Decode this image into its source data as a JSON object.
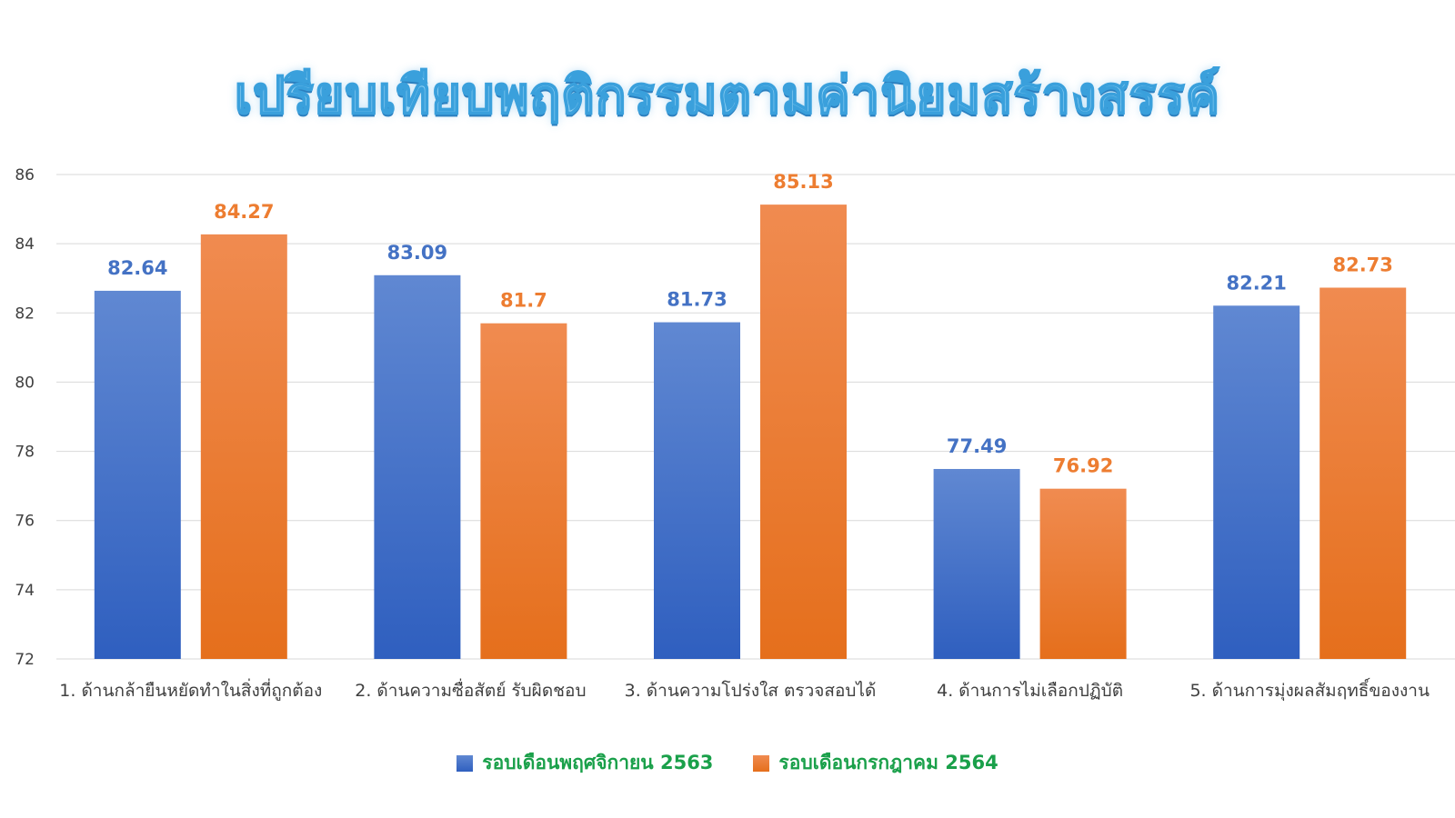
{
  "chart_data": {
    "type": "bar",
    "title": "เปรียบเทียบพฤติกรรมตามค่านิยมสร้างสรรค์",
    "categories": [
      "1. ด้านกล้ายืนหยัดทำในสิ่งที่ถูกต้อง",
      "2. ด้านความซื่อสัตย์ รับผิดชอบ",
      "3. ด้านความโปร่งใส ตรวจสอบได้",
      "4. ด้านการไม่เลือกปฏิบัติ",
      "5. ด้านการมุ่งผลสัมฤทธิ์ของงาน"
    ],
    "series": [
      {
        "name": "รอบเดือนพฤศจิกายน 2563",
        "values": [
          82.64,
          83.09,
          81.73,
          77.49,
          82.21
        ],
        "labels": [
          "82.64",
          "83.09",
          "81.73",
          "77.49",
          "82.21"
        ],
        "color": "#4472c4"
      },
      {
        "name": "รอบเดือนกรกฎาคม 2564",
        "values": [
          84.27,
          81.7,
          85.13,
          76.92,
          82.73
        ],
        "labels": [
          "84.27",
          "81.7",
          "85.13",
          "76.92",
          "82.73"
        ],
        "color": "#ed7d31"
      }
    ],
    "ylim": [
      72,
      86
    ],
    "yticks": [
      "72",
      "74",
      "76",
      "78",
      "80",
      "82",
      "84",
      "86"
    ],
    "grid": true,
    "legend_position": "bottom",
    "legend_text_color": "#1aa04a",
    "label_colors": [
      "#4472c4",
      "#ed7d31"
    ]
  }
}
